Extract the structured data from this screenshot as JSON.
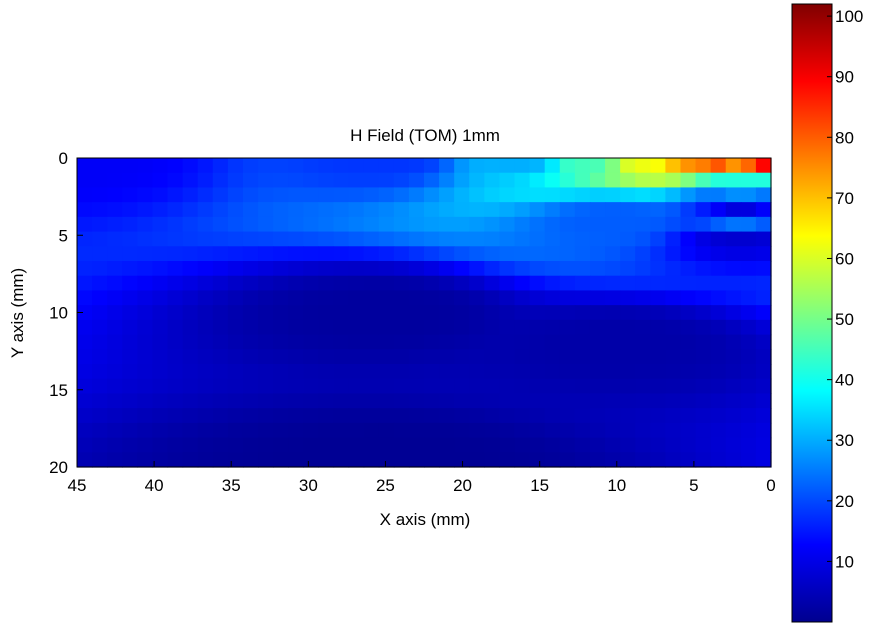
{
  "chart_data": {
    "type": "heatmap",
    "title": "H Field (TOM) 1mm",
    "xlabel": "X axis (mm)",
    "ylabel": "Y axis (mm)",
    "xlim": [
      45,
      0
    ],
    "ylim": [
      0,
      20
    ],
    "x_reversed": true,
    "y_reversed": true,
    "x_ticks": [
      45,
      40,
      35,
      30,
      25,
      20,
      15,
      10,
      5,
      0
    ],
    "y_ticks": [
      0,
      5,
      10,
      15,
      20
    ],
    "colorbar": {
      "range": [
        0,
        102
      ],
      "ticks": [
        10,
        20,
        30,
        40,
        50,
        60,
        70,
        80,
        90,
        100
      ],
      "colormap": "jet"
    },
    "grid": false,
    "field_samples": [
      {
        "x": 1,
        "y": 0,
        "value": 100
      },
      {
        "x": 3,
        "y": 0,
        "value": 90
      },
      {
        "x": 5,
        "y": 0,
        "value": 75
      },
      {
        "x": 8,
        "y": 0,
        "value": 62
      },
      {
        "x": 12,
        "y": 0,
        "value": 45
      },
      {
        "x": 16,
        "y": 0,
        "value": 30
      },
      {
        "x": 25,
        "y": 0,
        "value": 18
      },
      {
        "x": 45,
        "y": 0,
        "value": 12
      },
      {
        "x": 2,
        "y": 1,
        "value": 45
      },
      {
        "x": 2,
        "y": 2,
        "value": 30
      },
      {
        "x": 2,
        "y": 3,
        "value": 8
      },
      {
        "x": 2,
        "y": 4,
        "value": 25
      },
      {
        "x": 10,
        "y": 4,
        "value": 22
      },
      {
        "x": 2,
        "y": 5,
        "value": 8
      },
      {
        "x": 25,
        "y": 10,
        "value": 3
      },
      {
        "x": 10,
        "y": 12,
        "value": 4
      },
      {
        "x": 25,
        "y": 20,
        "value": 2
      }
    ]
  }
}
